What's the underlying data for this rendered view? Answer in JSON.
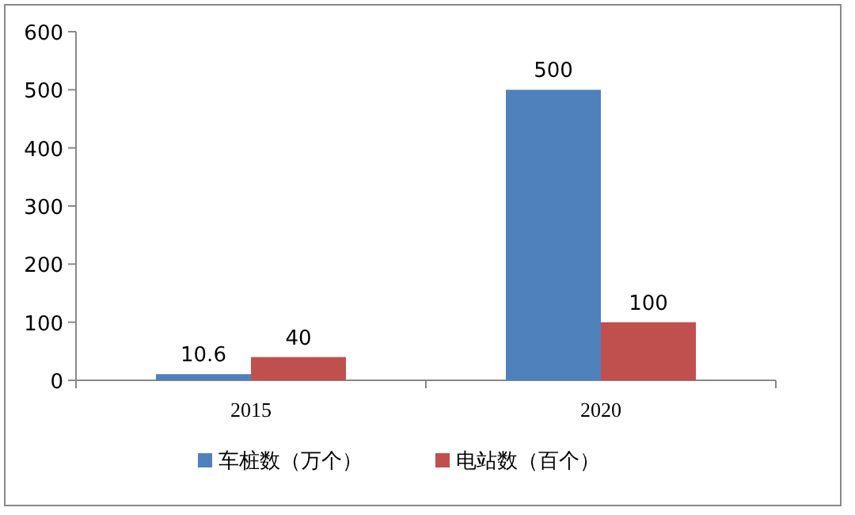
{
  "chart_data": {
    "type": "bar",
    "categories": [
      "2015",
      "2020"
    ],
    "series": [
      {
        "name": "车桩数（万个）",
        "color": "#4f81bd",
        "values": [
          10.6,
          500
        ]
      },
      {
        "name": "电站数（百个）",
        "color": "#c0504d",
        "values": [
          40,
          100
        ]
      }
    ],
    "ylim": [
      0,
      600
    ],
    "yticks": [
      0,
      100,
      200,
      300,
      400,
      500,
      600
    ],
    "data_labels": true,
    "legend": "bottom"
  }
}
